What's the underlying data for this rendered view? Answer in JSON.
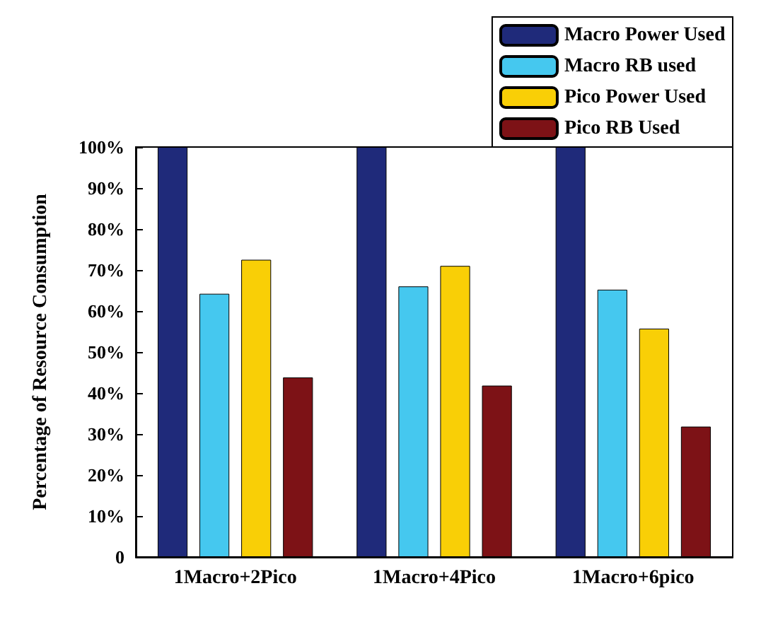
{
  "chart_data": {
    "type": "bar",
    "ylabel": "Percentage of Resource Consumption",
    "categories": [
      "1Macro+2Pico",
      "1Macro+4Pico",
      "1Macro+6pico"
    ],
    "series": [
      {
        "name": "Macro Power Used",
        "color": "#1f2a7a",
        "values": [
          100,
          100,
          100
        ]
      },
      {
        "name": "Macro RB used",
        "color": "#45c8ef",
        "values": [
          64.2,
          66,
          65.2
        ]
      },
      {
        "name": "Pico Power Used",
        "color": "#f9cf06",
        "values": [
          72.5,
          71,
          55.7
        ]
      },
      {
        "name": "Pico RB Used",
        "color": "#7d1216",
        "values": [
          43.8,
          41.8,
          31.8
        ]
      }
    ],
    "ylim": [
      0,
      100
    ],
    "yticks": [
      0,
      {
        "value": 10,
        "label": "10%"
      },
      {
        "value": 20,
        "label": "20%"
      },
      {
        "value": 30,
        "label": "30%"
      },
      {
        "value": 40,
        "label": "40%"
      },
      {
        "value": 50,
        "label": "50%"
      },
      {
        "value": 60,
        "label": "60%"
      },
      {
        "value": 70,
        "label": "70%"
      },
      {
        "value": 80,
        "label": "80%"
      },
      {
        "value": 90,
        "label": "90%"
      },
      {
        "value": 100,
        "label": "100%"
      }
    ],
    "legend": "top right"
  }
}
